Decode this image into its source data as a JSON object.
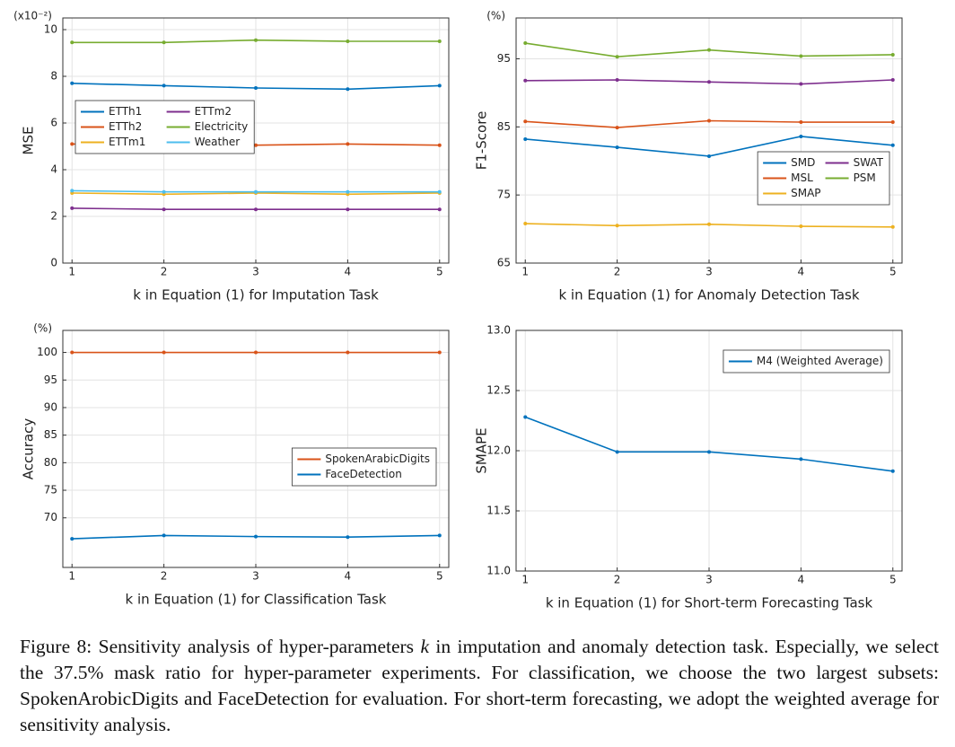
{
  "chart_data": [
    {
      "type": "line",
      "xlabel": "k in Equation (1) for Imputation Task",
      "ylabel": "MSE",
      "y_unit": "(x10⁻²)",
      "x": [
        1,
        2,
        3,
        4,
        5
      ],
      "xlim": [
        0.9,
        5.1
      ],
      "xticks": [
        1,
        2,
        3,
        4,
        5
      ],
      "ylim": [
        0,
        10.5
      ],
      "yticks": [
        0,
        2,
        4,
        6,
        8,
        10
      ],
      "grid": true,
      "legend": "center-left",
      "legend_columns": 2,
      "series": [
        {
          "name": "ETTh1",
          "color": "#0072bd",
          "values": [
            7.7,
            7.6,
            7.5,
            7.45,
            7.6
          ]
        },
        {
          "name": "ETTm2",
          "color": "#7e2f8e",
          "values": [
            2.35,
            2.3,
            2.3,
            2.3,
            2.3
          ]
        },
        {
          "name": "ETTh2",
          "color": "#d95319",
          "values": [
            5.1,
            5.1,
            5.05,
            5.1,
            5.05
          ]
        },
        {
          "name": "Electricity",
          "color": "#77ac30",
          "values": [
            9.45,
            9.45,
            9.55,
            9.5,
            9.5
          ]
        },
        {
          "name": "ETTm1",
          "color": "#edb120",
          "values": [
            3.0,
            2.95,
            3.0,
            2.95,
            3.0
          ]
        },
        {
          "name": "Weather",
          "color": "#4dbeee",
          "values": [
            3.1,
            3.05,
            3.05,
            3.05,
            3.05
          ]
        }
      ]
    },
    {
      "type": "line",
      "xlabel": "k in Equation (1) for Anomaly Detection Task",
      "ylabel": "F1-Score",
      "y_unit": "(%)",
      "x": [
        1,
        2,
        3,
        4,
        5
      ],
      "xlim": [
        0.9,
        5.1
      ],
      "xticks": [
        1,
        2,
        3,
        4,
        5
      ],
      "ylim": [
        65,
        101
      ],
      "yticks": [
        65,
        75,
        85,
        95
      ],
      "grid": true,
      "legend": "lower-right",
      "legend_columns": 2,
      "series": [
        {
          "name": "SMD",
          "color": "#0072bd",
          "values": [
            83.2,
            82.0,
            80.7,
            83.6,
            82.3
          ]
        },
        {
          "name": "SWAT",
          "color": "#7e2f8e",
          "values": [
            91.8,
            91.9,
            91.6,
            91.3,
            91.9
          ]
        },
        {
          "name": "MSL",
          "color": "#d95319",
          "values": [
            85.8,
            84.9,
            85.9,
            85.7,
            85.7
          ]
        },
        {
          "name": "PSM",
          "color": "#77ac30",
          "values": [
            97.3,
            95.3,
            96.3,
            95.4,
            95.6
          ]
        },
        {
          "name": "SMAP",
          "color": "#edb120",
          "values": [
            70.8,
            70.5,
            70.7,
            70.4,
            70.3
          ]
        }
      ]
    },
    {
      "type": "line",
      "xlabel": "k in Equation (1) for Classification Task",
      "ylabel": "Accuracy",
      "y_unit": "(%)",
      "x": [
        1,
        2,
        3,
        4,
        5
      ],
      "xlim": [
        0.9,
        5.1
      ],
      "xticks": [
        1,
        2,
        3,
        4,
        5
      ],
      "ylim": [
        61,
        104
      ],
      "yticks": [
        70,
        75,
        80,
        85,
        90,
        95,
        100
      ],
      "grid": true,
      "legend": "center-right",
      "legend_columns": 1,
      "series": [
        {
          "name": "SpokenArabicDigits",
          "color": "#d95319",
          "values": [
            100,
            100,
            100,
            100,
            100
          ]
        },
        {
          "name": "FaceDetection",
          "color": "#0072bd",
          "values": [
            66.2,
            66.8,
            66.6,
            66.5,
            66.8
          ]
        }
      ]
    },
    {
      "type": "line",
      "xlabel": "k in Equation (1) for Short-term Forecasting Task",
      "ylabel": "SMAPE",
      "x": [
        1,
        2,
        3,
        4,
        5
      ],
      "xlim": [
        0.9,
        5.1
      ],
      "xticks": [
        1,
        2,
        3,
        4,
        5
      ],
      "ylim": [
        11,
        13
      ],
      "yticks": [
        {
          "value": 11,
          "label": "11.0"
        },
        11.5,
        {
          "value": 12,
          "label": "12.0"
        },
        12.5,
        {
          "value": 13,
          "label": "13.0"
        }
      ],
      "grid": true,
      "legend": "upper-right",
      "legend_columns": 1,
      "series": [
        {
          "name": "M4 (Weighted Average)",
          "color": "#0072bd",
          "values": [
            12.28,
            11.99,
            11.99,
            11.93,
            11.83
          ]
        }
      ]
    }
  ],
  "caption": {
    "before": "Figure 8: Sensitivity analysis of hyper-parameters ",
    "variable": "k",
    "after": " in imputation and anomaly detection task. Especially, we select the 37.5% mask ratio for hyper-parameter experiments. For classification, we choose the two largest subsets: SpokenArobicDigits and FaceDetection for evaluation. For short-term forecasting, we adopt the weighted average for sensitivity analysis."
  }
}
